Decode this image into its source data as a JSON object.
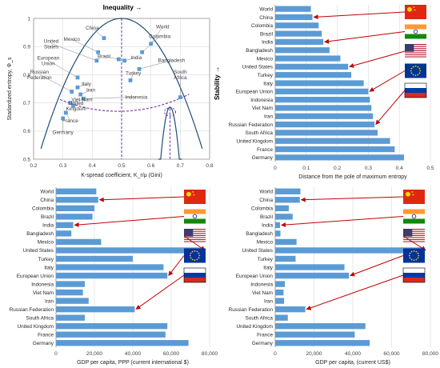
{
  "colors": {
    "bar": "#5b9bd5",
    "curve": "#1f4e79",
    "dashed": "#7030a0",
    "arrow": "#c00000",
    "leader": "#808080"
  },
  "flags": [
    "china-flag",
    "india-flag",
    "usa-flag",
    "eu-flag",
    "russia-flag"
  ],
  "chart_data": [
    {
      "type": "scatter",
      "title": "Inequality →",
      "xlabel": "K-spread coefficient, K_r/μ (Gini)",
      "ylabel": "Stadardized entropy, Φ_s",
      "xlim": [
        0.2,
        0.8
      ],
      "ylim": [
        0.5,
        1.0
      ],
      "xticks": [
        "0.2",
        "0.3",
        "0.4",
        "0.5",
        "0.6",
        "0.7",
        "0.8"
      ],
      "yticks": [
        "0.5",
        "0.6",
        "0.7",
        "0.8",
        "0.9",
        "1"
      ],
      "grid": true,
      "points": [
        {
          "name": "World",
          "x": 0.6,
          "y": 0.91,
          "lx": 0.64,
          "ly": 0.965
        },
        {
          "name": "China",
          "x": 0.44,
          "y": 0.93,
          "lx": 0.4,
          "ly": 0.96
        },
        {
          "name": "Colombia",
          "x": 0.57,
          "y": 0.88,
          "lx": 0.63,
          "ly": 0.93
        },
        {
          "name": "Mexico",
          "x": 0.42,
          "y": 0.88,
          "lx": 0.33,
          "ly": 0.92
        },
        {
          "name": "Brazil",
          "x": 0.49,
          "y": 0.855,
          "lx": 0.44,
          "ly": 0.86
        },
        {
          "name": "India",
          "x": 0.51,
          "y": 0.85,
          "lx": 0.55,
          "ly": 0.855
        },
        {
          "name": "United States",
          "x": 0.415,
          "y": 0.85,
          "lx": 0.26,
          "ly": 0.905
        },
        {
          "name": "Bangladesh",
          "x": 0.56,
          "y": 0.82,
          "lx": 0.67,
          "ly": 0.845
        },
        {
          "name": "European Union",
          "x": 0.35,
          "y": 0.79,
          "lx": 0.25,
          "ly": 0.845
        },
        {
          "name": "Turkey",
          "x": 0.53,
          "y": 0.78,
          "lx": 0.54,
          "ly": 0.8
        },
        {
          "name": "South Africa",
          "x": 0.7,
          "y": 0.72,
          "lx": 0.7,
          "ly": 0.795
        },
        {
          "name": "Russian Federation",
          "x": 0.33,
          "y": 0.74,
          "lx": 0.22,
          "ly": 0.795
        },
        {
          "name": "Italy",
          "x": 0.35,
          "y": 0.755,
          "lx": 0.38,
          "ly": 0.762
        },
        {
          "name": "Iran",
          "x": 0.36,
          "y": 0.73,
          "lx": 0.395,
          "ly": 0.74
        },
        {
          "name": "Indonesia",
          "x": 0.37,
          "y": 0.715,
          "lx": 0.55,
          "ly": 0.715
        },
        {
          "name": "Viet Nam",
          "x": 0.325,
          "y": 0.7,
          "lx": 0.365,
          "ly": 0.706
        },
        {
          "name": "United Kingdom",
          "x": 0.335,
          "y": 0.69,
          "lx": 0.345,
          "ly": 0.685
        },
        {
          "name": "France",
          "x": 0.31,
          "y": 0.665,
          "lx": 0.325,
          "ly": 0.63
        },
        {
          "name": "Germany",
          "x": 0.3,
          "y": 0.645,
          "lx": 0.3,
          "ly": 0.59
        }
      ]
    },
    {
      "type": "bar",
      "orientation": "horizontal",
      "ylabel": "Stability →",
      "xlabel": "Distance from the pole of maximum entropy",
      "xlim": [
        0,
        0.5
      ],
      "xticks": [
        "0",
        "0.1",
        "0.2",
        "0.3",
        "0.4",
        "0.5"
      ],
      "categories": [
        "World",
        "China",
        "Colombia",
        "Brazil",
        "India",
        "Bangladesh",
        "Mexico",
        "United States",
        "Turkey",
        "Italy",
        "European Union",
        "Indonesia",
        "Viet Nam",
        "Iran",
        "Russian Federation",
        "South Africa",
        "United Kingdom",
        "France",
        "Germany"
      ],
      "values": [
        0.115,
        0.12,
        0.14,
        0.15,
        0.155,
        0.175,
        0.21,
        0.235,
        0.245,
        0.285,
        0.3,
        0.305,
        0.31,
        0.315,
        0.32,
        0.33,
        0.37,
        0.385,
        0.415
      ]
    },
    {
      "type": "bar",
      "orientation": "horizontal",
      "xlabel": "GDP per capita, PPP (current international $)",
      "xlim": [
        0,
        80000
      ],
      "xticks": [
        "0",
        "20,000",
        "40,000",
        "60,000",
        "80,000"
      ],
      "categories": [
        "World",
        "China",
        "Colombia",
        "Brazil",
        "India",
        "Bangladesh",
        "Mexico",
        "United States",
        "Turkey",
        "Italy",
        "European Union",
        "Indonesia",
        "Viet Nam",
        "Iran",
        "Russian Federation",
        "South Africa",
        "United Kingdom",
        "France",
        "Germany"
      ],
      "values": [
        21000,
        22000,
        20000,
        19000,
        9000,
        8000,
        23500,
        77000,
        40000,
        56000,
        58000,
        15000,
        14000,
        17000,
        41000,
        15000,
        58000,
        57000,
        69000
      ]
    },
    {
      "type": "bar",
      "orientation": "horizontal",
      "xlabel": "GDP per capita, (current US$)",
      "xlim": [
        0,
        80000
      ],
      "xticks": [
        "0",
        "20,000",
        "40,000",
        "60,000",
        "80,000"
      ],
      "categories": [
        "World",
        "China",
        "Colombia",
        "Brazil",
        "India",
        "Bangladesh",
        "Mexico",
        "United States",
        "Turkey",
        "Italy",
        "European Union",
        "Indonesia",
        "Viet Nam",
        "Iran",
        "Russian Federation",
        "South Africa",
        "United Kingdom",
        "France",
        "Germany"
      ],
      "values": [
        13000,
        12700,
        7000,
        9000,
        2500,
        2700,
        11000,
        77000,
        10500,
        35700,
        38000,
        5000,
        4300,
        4600,
        15500,
        6500,
        46500,
        41000,
        48700
      ]
    }
  ]
}
